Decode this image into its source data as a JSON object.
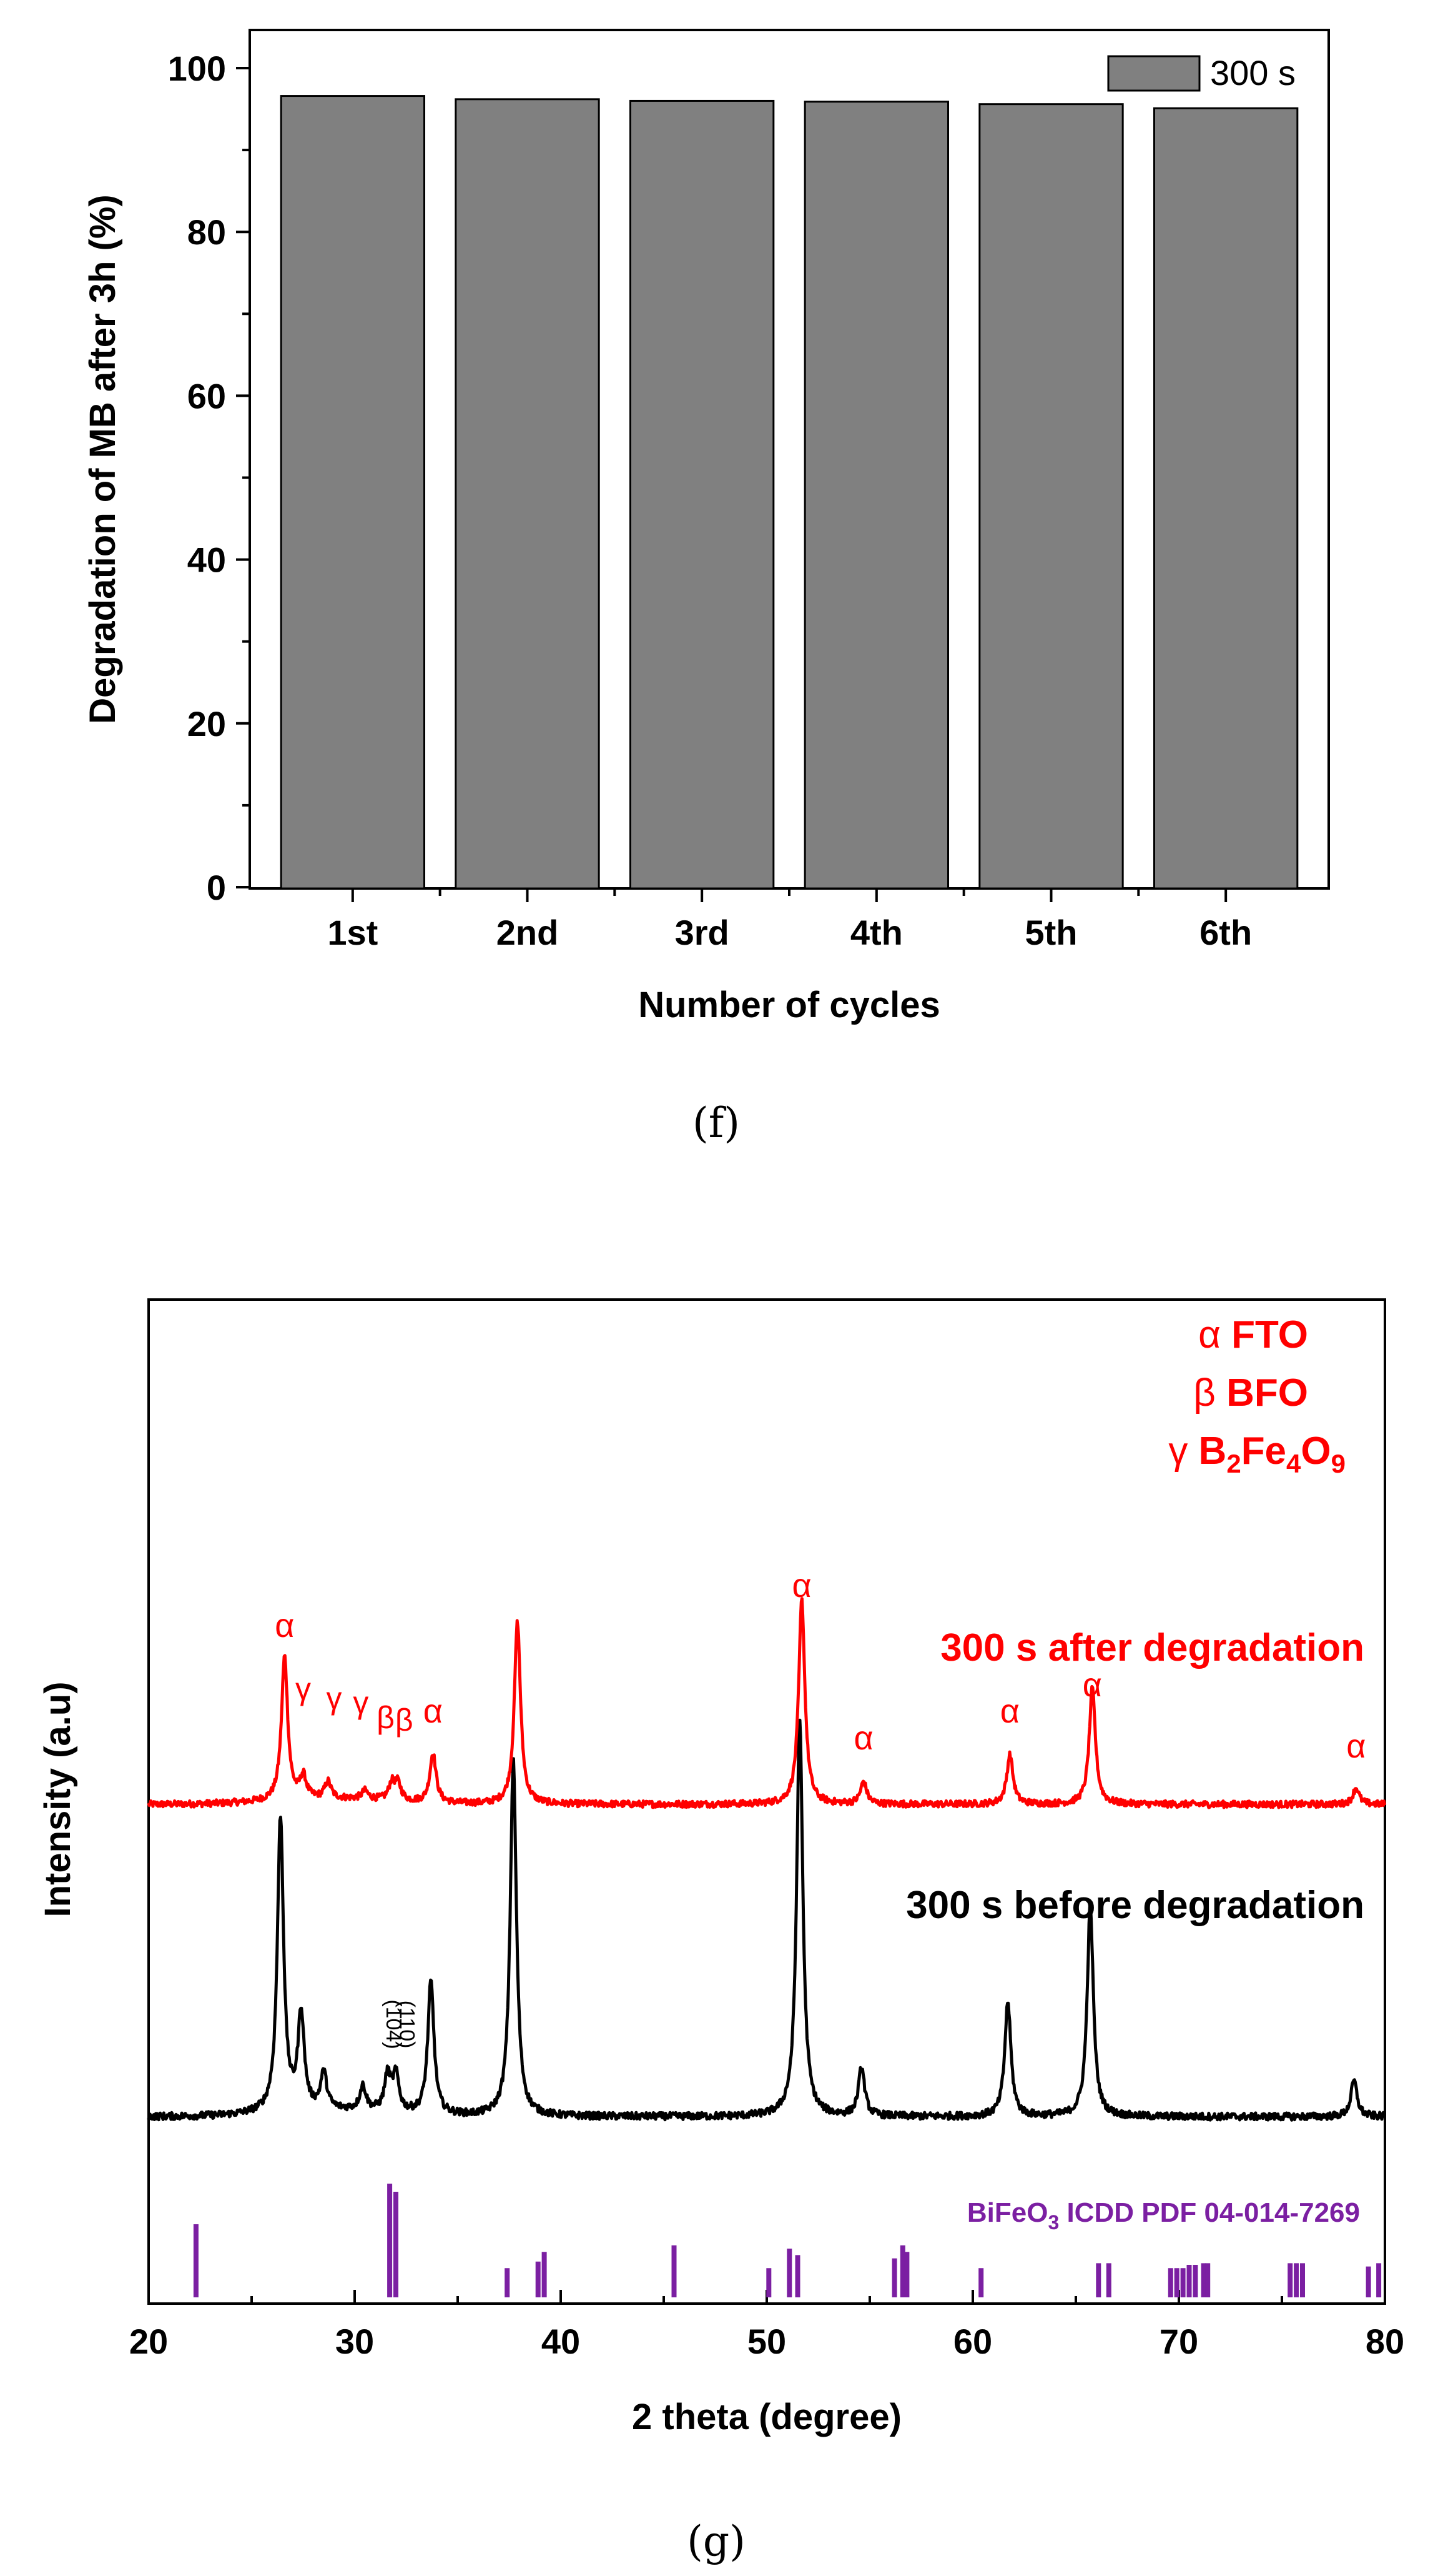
{
  "chart_data": [
    {
      "type": "bar",
      "caption": "(f)",
      "categories": [
        "1st",
        "2nd",
        "3rd",
        "4th",
        "5th",
        "6th"
      ],
      "series": [
        {
          "name": "300 s",
          "values": [
            96.6,
            96.2,
            96.0,
            95.9,
            95.6,
            95.1
          ],
          "color": "#808080"
        }
      ],
      "xlabel": "Number of cycles",
      "ylabel": "Degradation of MB after 3h (%)",
      "ylim": [
        0,
        100
      ],
      "yticks": [
        0,
        20,
        40,
        60,
        80,
        100
      ],
      "legend": "top-right",
      "grid": false
    },
    {
      "type": "line",
      "caption": "(g)",
      "xlabel": "2 theta (degree)",
      "ylabel": "Intensity (a.u)",
      "xlim": [
        20,
        80
      ],
      "xticks": [
        20,
        30,
        40,
        50,
        60,
        70,
        80
      ],
      "legend_keys": [
        {
          "symbol": "α",
          "label": "FTO"
        },
        {
          "symbol": "β",
          "label": "BFO"
        },
        {
          "symbol": "γ",
          "label": "B2Fe4O9"
        }
      ],
      "series": [
        {
          "name": "300 s after degradation",
          "color": "#ff0000",
          "baseline": 0.78,
          "peaks": [
            [
              26.6,
              0.26
            ],
            [
              27.5,
              0.04
            ],
            [
              28.7,
              0.03
            ],
            [
              30.5,
              0.015
            ],
            [
              31.8,
              0.03
            ],
            [
              32.1,
              0.03
            ],
            [
              33.8,
              0.09
            ],
            [
              37.9,
              0.33
            ],
            [
              51.7,
              0.37
            ],
            [
              54.7,
              0.04
            ],
            [
              61.8,
              0.09
            ],
            [
              65.8,
              0.21
            ],
            [
              78.6,
              0.03
            ]
          ]
        },
        {
          "name": "300 s before degradation",
          "color": "#000000",
          "baseline": 1.0,
          "peaks": [
            [
              26.4,
              0.49
            ],
            [
              27.4,
              0.16
            ],
            [
              28.5,
              0.06
            ],
            [
              30.4,
              0.04
            ],
            [
              31.6,
              0.06
            ],
            [
              32.0,
              0.06
            ],
            [
              33.7,
              0.22
            ],
            [
              37.7,
              0.59
            ],
            [
              51.6,
              0.66
            ],
            [
              54.6,
              0.08
            ],
            [
              61.7,
              0.19
            ],
            [
              65.7,
              0.35
            ],
            [
              78.5,
              0.06
            ]
          ]
        }
      ],
      "annotations": {
        "alpha": [
          26.6,
          33.8,
          51.7,
          54.7,
          61.8,
          65.8,
          78.6
        ],
        "gamma": [
          27.5,
          28.7,
          29.8
        ],
        "beta": [
          31.6,
          32.5
        ],
        "miller": [
          "(104)",
          "(110)"
        ]
      },
      "reference": {
        "label": "BiFeO3 ICDD PDF  04-014-7269",
        "color": "#7b1fa2",
        "lines": [
          [
            22.3,
            0.45
          ],
          [
            31.7,
            0.7
          ],
          [
            32.0,
            0.65
          ],
          [
            37.4,
            0.18
          ],
          [
            38.9,
            0.22
          ],
          [
            39.2,
            0.28
          ],
          [
            45.5,
            0.32
          ],
          [
            50.1,
            0.18
          ],
          [
            51.1,
            0.3
          ],
          [
            51.5,
            0.26
          ],
          [
            56.2,
            0.24
          ],
          [
            56.6,
            0.32
          ],
          [
            56.8,
            0.28
          ],
          [
            60.4,
            0.18
          ],
          [
            66.1,
            0.21
          ],
          [
            66.6,
            0.21
          ],
          [
            69.6,
            0.18
          ],
          [
            69.9,
            0.18
          ],
          [
            70.2,
            0.18
          ],
          [
            70.5,
            0.2
          ],
          [
            70.8,
            0.2
          ],
          [
            71.2,
            0.21
          ],
          [
            71.4,
            0.21
          ],
          [
            75.4,
            0.21
          ],
          [
            75.7,
            0.21
          ],
          [
            76.0,
            0.21
          ],
          [
            79.2,
            0.19
          ],
          [
            79.7,
            0.21
          ]
        ]
      }
    }
  ]
}
